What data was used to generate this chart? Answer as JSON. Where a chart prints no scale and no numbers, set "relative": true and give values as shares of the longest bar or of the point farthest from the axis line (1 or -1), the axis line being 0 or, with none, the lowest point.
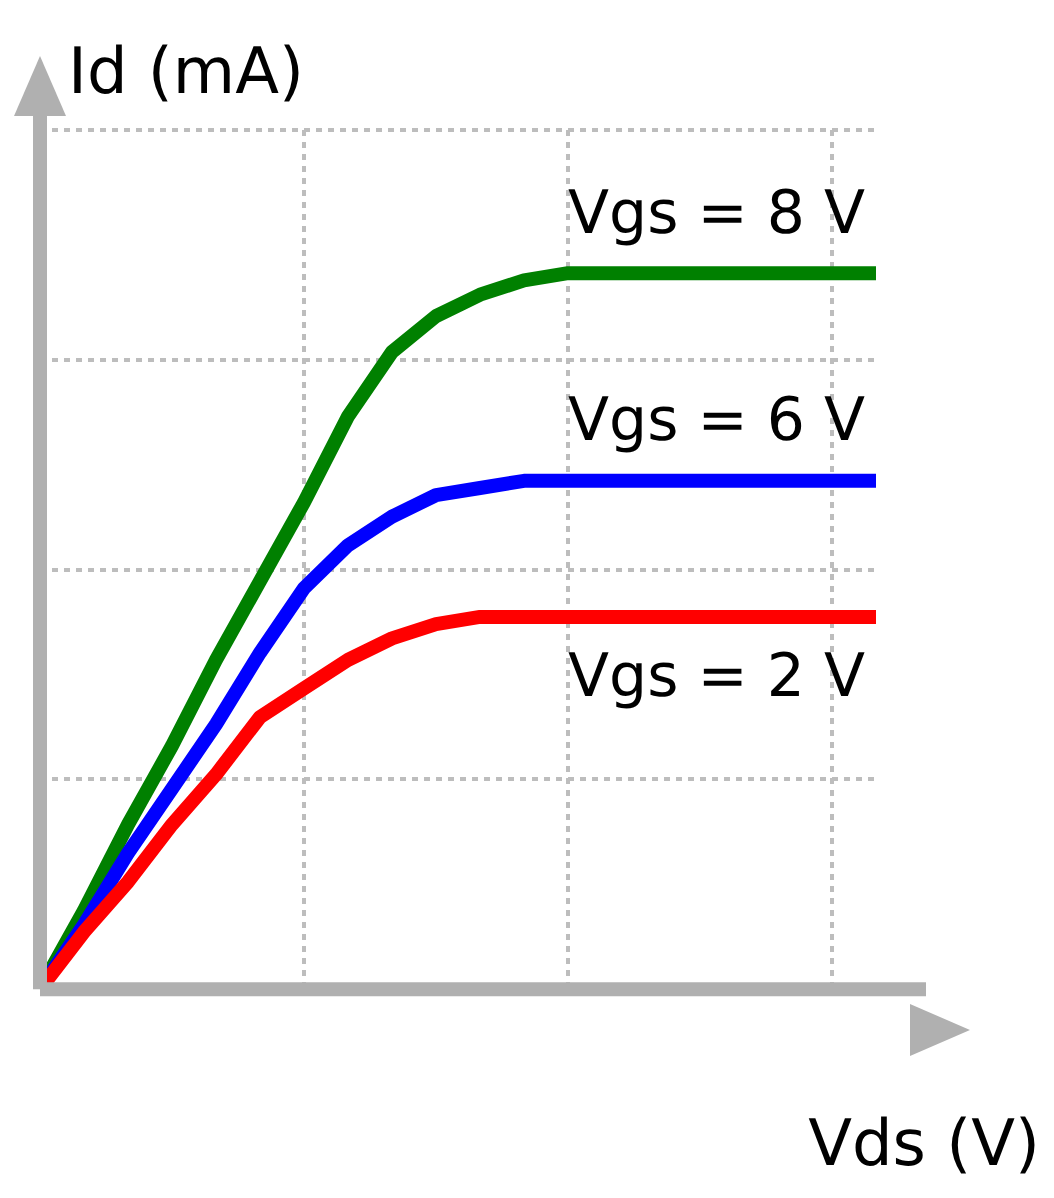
{
  "chart_data": {
    "type": "line",
    "relative": true,
    "xlabel": "Vds (V)",
    "ylabel": "Id (mA)",
    "categories": [
      null,
      null,
      null,
      null,
      null,
      null,
      null,
      null,
      null,
      null,
      null,
      null,
      null,
      null,
      null,
      null,
      null,
      null,
      null,
      null
    ],
    "series": [
      {
        "name": "Vgs = 2 V",
        "color": "#ff0000",
        "values": [
          0,
          0.08,
          0.15,
          0.23,
          0.3,
          0.38,
          0.42,
          0.46,
          0.49,
          0.51,
          0.52,
          0.52,
          0.52,
          0.52,
          0.52,
          0.52,
          0.52,
          0.52,
          0.52,
          0.52
        ]
      },
      {
        "name": "Vgs = 6 V",
        "color": "#0000ff",
        "values": [
          0,
          0.09,
          0.19,
          0.28,
          0.37,
          0.47,
          0.56,
          0.62,
          0.66,
          0.69,
          0.7,
          0.71,
          0.71,
          0.71,
          0.71,
          0.71,
          0.71,
          0.71,
          0.71,
          0.71
        ]
      },
      {
        "name": "Vgs = 8 V",
        "color": "#008000",
        "values": [
          0,
          0.11,
          0.23,
          0.34,
          0.46,
          0.57,
          0.68,
          0.8,
          0.89,
          0.94,
          0.97,
          0.99,
          1,
          1,
          1,
          1,
          1,
          1,
          1,
          1
        ]
      }
    ],
    "grid": true,
    "legend": false,
    "marker": "none",
    "line_style": "solid"
  }
}
